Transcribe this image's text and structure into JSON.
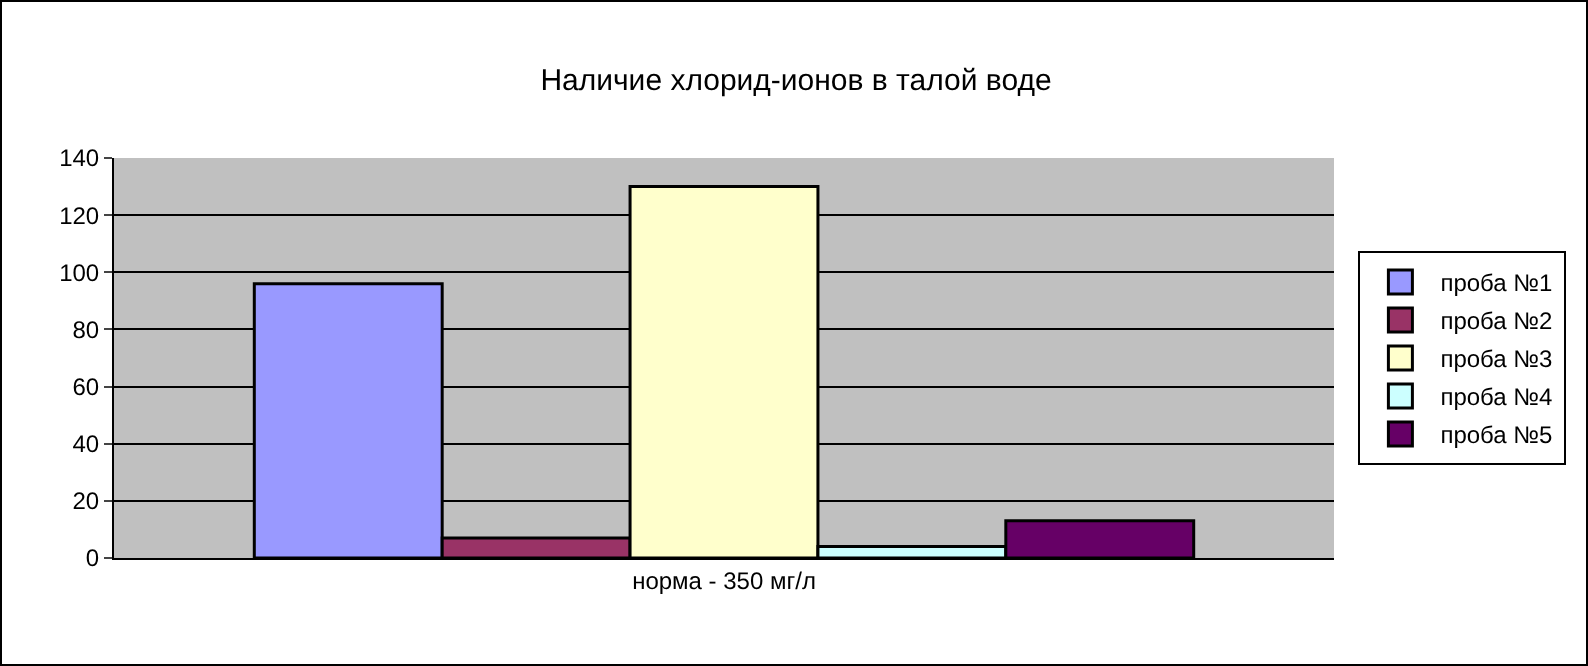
{
  "chart_data": {
    "type": "bar",
    "title": "Наличие хлорид-ионов в талой воде",
    "categories": [
      "норма - 350 мг/л"
    ],
    "series": [
      {
        "name": "проба №1",
        "color": "#9999ff",
        "values": [
          96
        ]
      },
      {
        "name": "проба №2",
        "color": "#993366",
        "values": [
          7
        ]
      },
      {
        "name": "проба №3",
        "color": "#ffffcc",
        "values": [
          130
        ]
      },
      {
        "name": "проба №4",
        "color": "#ccffff",
        "values": [
          4
        ]
      },
      {
        "name": "проба №5",
        "color": "#660066",
        "values": [
          13
        ]
      }
    ],
    "ylim": [
      0,
      140
    ],
    "yticks": [
      0,
      20,
      40,
      60,
      80,
      100,
      120,
      140
    ],
    "grid": "y",
    "legend": "right"
  }
}
